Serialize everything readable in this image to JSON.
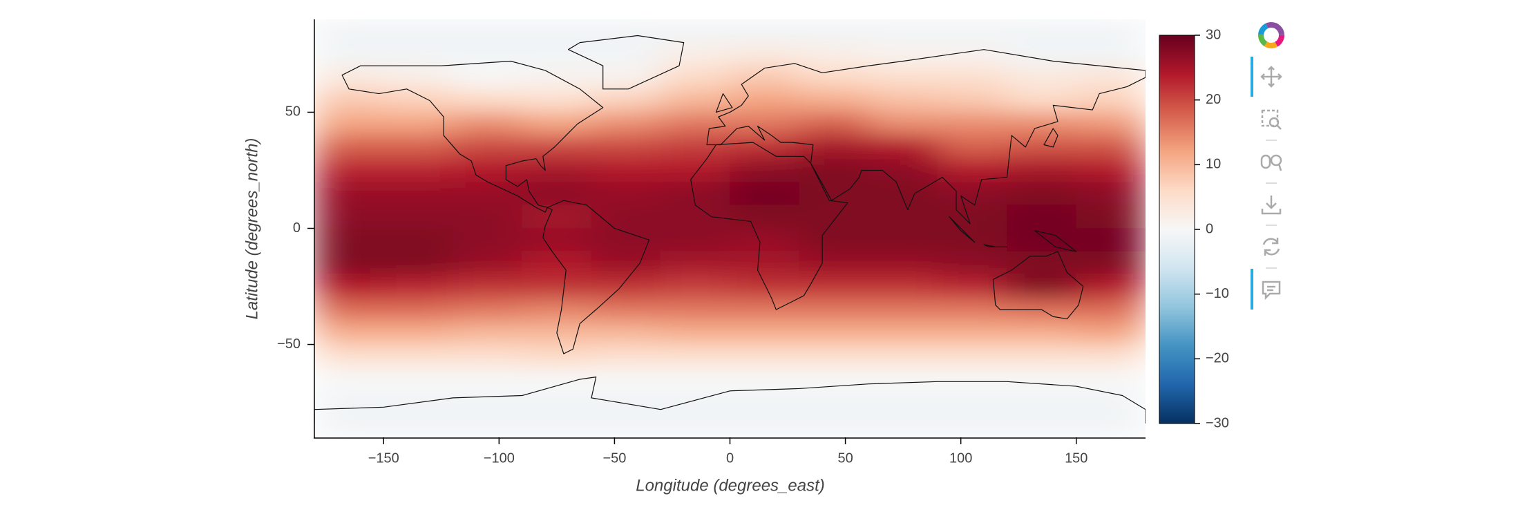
{
  "chart_data": {
    "type": "heatmap",
    "xlabel": "Longitude (degrees_east)",
    "ylabel": "Latitude (degrees_north)",
    "xlim": [
      -180,
      180
    ],
    "ylim": [
      -90,
      90
    ],
    "xticks": [
      {
        "value": -150,
        "label": "−150"
      },
      {
        "value": -100,
        "label": "−100"
      },
      {
        "value": -50,
        "label": "−50"
      },
      0,
      50,
      100,
      150
    ],
    "yticks": [
      {
        "value": -50,
        "label": "−50"
      },
      0,
      50
    ],
    "colormap": "RdBu_r",
    "clim": [
      -30,
      30
    ],
    "cticks": [
      {
        "value": -30,
        "label": "−30"
      },
      {
        "value": -20,
        "label": "−20"
      },
      {
        "value": -10,
        "label": "−10"
      },
      0,
      10,
      20,
      30
    ],
    "x": [
      -165,
      -135,
      -105,
      -75,
      -45,
      -15,
      15,
      45,
      75,
      105,
      135,
      165
    ],
    "y": [
      85,
      75,
      65,
      55,
      45,
      35,
      25,
      15,
      5,
      -5,
      -15,
      -25,
      -35,
      -45,
      -55,
      -65,
      -75,
      -85
    ],
    "z": [
      [
        -1,
        -1,
        -1,
        -1,
        -1,
        -1,
        -1,
        -1,
        -1,
        -1,
        -1,
        -1
      ],
      [
        -1,
        -1,
        -1,
        -1,
        -1,
        2,
        3,
        2,
        1,
        1,
        -1,
        -1
      ],
      [
        3,
        2,
        0,
        1,
        1,
        6,
        8,
        6,
        5,
        5,
        3,
        4
      ],
      [
        8,
        7,
        6,
        5,
        7,
        10,
        12,
        11,
        9,
        8,
        6,
        7
      ],
      [
        12,
        12,
        14,
        12,
        14,
        16,
        16,
        18,
        14,
        14,
        14,
        13
      ],
      [
        18,
        18,
        20,
        20,
        20,
        21,
        22,
        25,
        24,
        18,
        19,
        19
      ],
      [
        23,
        23,
        24,
        25,
        24,
        24,
        27,
        28,
        27,
        24,
        25,
        24
      ],
      [
        26,
        26,
        26,
        27,
        26,
        27,
        29,
        28,
        28,
        27,
        28,
        27
      ],
      [
        27,
        27,
        27,
        25,
        27,
        27,
        28,
        28,
        28,
        28,
        29,
        28
      ],
      [
        28,
        28,
        27,
        26,
        27,
        27,
        26,
        28,
        28,
        28,
        29,
        29
      ],
      [
        28,
        28,
        26,
        24,
        26,
        25,
        25,
        26,
        26,
        27,
        28,
        28
      ],
      [
        24,
        23,
        22,
        22,
        22,
        21,
        22,
        22,
        22,
        23,
        28,
        24
      ],
      [
        17,
        17,
        16,
        15,
        16,
        16,
        16,
        16,
        16,
        16,
        17,
        17
      ],
      [
        11,
        11,
        10,
        10,
        10,
        11,
        11,
        11,
        11,
        11,
        11,
        12
      ],
      [
        5,
        5,
        5,
        6,
        5,
        5,
        5,
        5,
        5,
        5,
        5,
        5
      ],
      [
        0,
        0,
        0,
        0,
        0,
        0,
        0,
        0,
        0,
        0,
        0,
        0
      ],
      [
        -1,
        -1,
        -1,
        -1,
        -1,
        -1,
        -1,
        -1,
        -1,
        -1,
        -1,
        -1
      ],
      [
        -1,
        -1,
        -1,
        -1,
        -1,
        -1,
        -1,
        -1,
        -1,
        -1,
        -1,
        -1
      ]
    ]
  }
}
